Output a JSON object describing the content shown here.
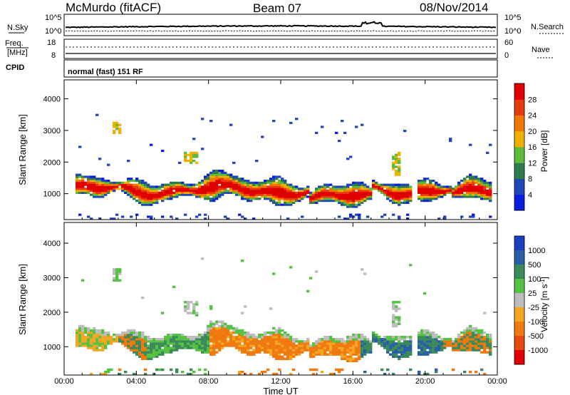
{
  "header": {
    "station": "McMurdo (fitACF)",
    "beam": "Beam 07",
    "date": "08/Nov/2014"
  },
  "noise_panel": {
    "left_label": "N.Sky",
    "right_label": "N.Search",
    "top_tick": "10^5",
    "bottom_tick": "10^0"
  },
  "freq_panel": {
    "left_label_1": "Freq.",
    "left_label_2": "[MHz]",
    "left_ticks": [
      "18",
      "8"
    ],
    "right_label": "Nave",
    "right_ticks": [
      "60",
      "0"
    ]
  },
  "cpid": {
    "label": "CPID",
    "text": "normal (fast) 151 RF"
  },
  "chart_data": [
    {
      "type": "heatmap",
      "name": "power",
      "xlabel": "Time UT",
      "ylabel": "Slant Range [km]",
      "x_ticks": [
        "00:00",
        "04:00",
        "08:00",
        "12:00",
        "16:00",
        "20:00",
        "00:00"
      ],
      "xlim_hours": [
        0,
        24
      ],
      "y_ticks": [
        1000,
        2000,
        3000,
        4000
      ],
      "ylim_km": [
        180,
        4600
      ],
      "colorbar": {
        "label": "Power [dB]",
        "tick_labels": [
          "4",
          "8",
          "12",
          "16",
          "20",
          "24",
          "28"
        ],
        "colors": [
          "#0a1ee0",
          "#1f47b8",
          "#2f7b4c",
          "#5cbb3a",
          "#f0b000",
          "#f07800",
          "#e83a10",
          "#e00000"
        ]
      }
    },
    {
      "type": "heatmap",
      "name": "velocity",
      "xlabel": "Time UT",
      "ylabel": "Slant Range [km]",
      "x_ticks": [
        "00:00",
        "04:00",
        "08:00",
        "12:00",
        "16:00",
        "20:00",
        "00:00"
      ],
      "xlim_hours": [
        0,
        24
      ],
      "y_ticks": [
        1000,
        2000,
        3000,
        4000
      ],
      "ylim_km": [
        180,
        4600
      ],
      "colorbar": {
        "label": "Velocity [m s^-1]",
        "tick_labels": [
          "1000",
          "500",
          "100",
          "25",
          "-25",
          "-100",
          "-500",
          "-1000"
        ],
        "colors": [
          "#1b3fbf",
          "#2a5fa8",
          "#3a8a5a",
          "#55c244",
          "#bdbdbd",
          "#f5a623",
          "#f07a10",
          "#e84a10",
          "#e00000"
        ]
      }
    }
  ]
}
